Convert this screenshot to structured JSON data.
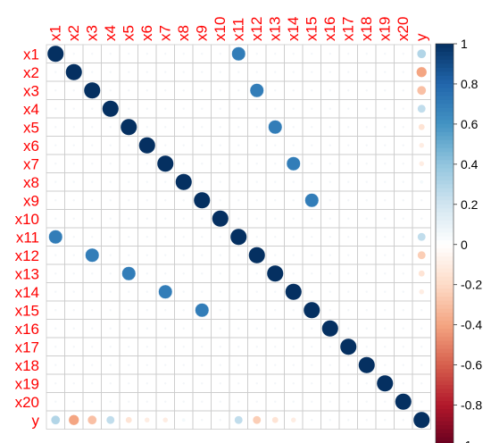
{
  "chart_data": {
    "type": "heatmap",
    "variables": [
      "x1",
      "x2",
      "x3",
      "x4",
      "x5",
      "x6",
      "x7",
      "x8",
      "x9",
      "x10",
      "x11",
      "x12",
      "x13",
      "x14",
      "x15",
      "x16",
      "x17",
      "x18",
      "x19",
      "x20",
      "y"
    ],
    "matrix": [
      [
        1,
        0,
        0,
        0,
        0,
        0,
        0,
        0,
        0,
        0,
        0.7,
        0,
        0,
        0,
        0,
        0,
        0,
        0,
        0,
        0,
        0.3
      ],
      [
        0,
        1,
        0,
        0,
        0,
        0,
        0,
        0,
        0,
        0,
        0,
        0,
        0,
        0,
        0,
        0,
        0,
        0,
        0,
        0,
        -0.4
      ],
      [
        0,
        0,
        1,
        0,
        0,
        0,
        0,
        0,
        0,
        0,
        0,
        0.7,
        0,
        0,
        0,
        0,
        0,
        0,
        0,
        0,
        -0.3
      ],
      [
        0,
        0,
        0,
        1,
        0,
        0,
        0,
        0,
        0,
        0,
        0,
        0,
        0,
        0,
        0,
        0,
        0,
        0,
        0,
        0,
        0.25
      ],
      [
        0,
        0,
        0,
        0,
        1,
        0,
        0,
        0,
        0,
        0,
        0,
        0,
        0.7,
        0,
        0,
        0,
        0,
        0,
        0,
        0,
        -0.15
      ],
      [
        0,
        0,
        0,
        0,
        0,
        1,
        0,
        0,
        0,
        0,
        0,
        0,
        0,
        0,
        0,
        0,
        0,
        0,
        0,
        0,
        -0.1
      ],
      [
        0,
        0,
        0,
        0,
        0,
        0,
        1,
        0,
        0,
        0,
        0,
        0,
        0,
        0.7,
        0,
        0,
        0,
        0,
        0,
        0,
        -0.1
      ],
      [
        0,
        0,
        0,
        0,
        0,
        0,
        0,
        1,
        0,
        0,
        0,
        0,
        0,
        0,
        0,
        0,
        0,
        0,
        0,
        0,
        0.05
      ],
      [
        0,
        0,
        0,
        0,
        0,
        0,
        0,
        0,
        1,
        0,
        0,
        0,
        0,
        0,
        0.7,
        0,
        0,
        0,
        0,
        0,
        0
      ],
      [
        0,
        0,
        0,
        0,
        0,
        0,
        0,
        0,
        0,
        1,
        0,
        0,
        0,
        0,
        0,
        0,
        0,
        0,
        0,
        0,
        0
      ],
      [
        0.7,
        0,
        0,
        0,
        0,
        0,
        0,
        0,
        0,
        0,
        1,
        0,
        0,
        0,
        0,
        0,
        0,
        0,
        0,
        0,
        0.25
      ],
      [
        0,
        0,
        0.7,
        0,
        0,
        0,
        0,
        0,
        0,
        0,
        0,
        1,
        0,
        0,
        0,
        0,
        0,
        0,
        0,
        0,
        -0.25
      ],
      [
        0,
        0,
        0,
        0,
        0.7,
        0,
        0,
        0,
        0,
        0,
        0,
        0,
        1,
        0,
        0,
        0,
        0,
        0,
        0,
        0,
        -0.15
      ],
      [
        0,
        0,
        0,
        0,
        0,
        0,
        0.7,
        0,
        0,
        0,
        0,
        0,
        0,
        1,
        0,
        0,
        0,
        0,
        0,
        0,
        -0.1
      ],
      [
        0,
        0,
        0,
        0,
        0,
        0,
        0,
        0,
        0.7,
        0,
        0,
        0,
        0,
        0,
        1,
        0,
        0,
        0,
        0,
        0,
        0
      ],
      [
        0,
        0,
        0,
        0,
        0,
        0,
        0,
        0,
        0,
        0,
        0,
        0,
        0,
        0,
        0,
        1,
        0,
        0,
        0,
        0,
        0
      ],
      [
        0,
        0,
        0,
        0,
        0,
        0,
        0,
        0,
        0,
        0,
        0,
        0,
        0,
        0,
        0,
        0,
        1,
        0,
        0,
        0,
        0
      ],
      [
        0,
        0,
        0,
        0,
        0,
        0,
        0,
        0,
        0,
        0,
        0,
        0,
        0,
        0,
        0,
        0,
        0,
        1,
        0,
        0,
        0
      ],
      [
        0,
        0,
        0,
        0,
        0,
        0,
        0,
        0,
        0,
        0,
        0,
        0,
        0,
        0,
        0,
        0,
        0,
        0,
        1,
        0,
        0
      ],
      [
        0,
        0,
        0,
        0,
        0,
        0,
        0,
        0,
        0,
        0,
        0,
        0,
        0,
        0,
        0,
        0,
        0,
        0,
        0,
        1,
        0
      ],
      [
        0.3,
        -0.4,
        -0.3,
        0.25,
        -0.15,
        -0.1,
        -0.1,
        0.05,
        0,
        0,
        0.25,
        -0.25,
        -0.15,
        -0.1,
        0,
        0,
        0,
        0,
        0,
        0,
        1
      ]
    ],
    "colorbar": {
      "ticks": [
        1,
        0.8,
        0.6,
        0.4,
        0.2,
        0,
        -0.2,
        -0.4,
        -0.6,
        -0.8,
        -1
      ],
      "tick_labels": [
        "1",
        "0.8",
        "0.6",
        "0.4",
        "0.2",
        "0",
        "-0.2",
        "-0.4",
        "-0.6",
        "-0.8",
        "-1"
      ],
      "range": [
        -1,
        1
      ]
    },
    "label_color": "#ff0000",
    "grid_color": "#cccccc",
    "palette": [
      "#67001f",
      "#b2182b",
      "#d6604d",
      "#f4a582",
      "#fddbc7",
      "#ffffff",
      "#d1e5f0",
      "#92c5de",
      "#4393c3",
      "#2166ac",
      "#053061"
    ],
    "grid": true,
    "legend": "right"
  }
}
